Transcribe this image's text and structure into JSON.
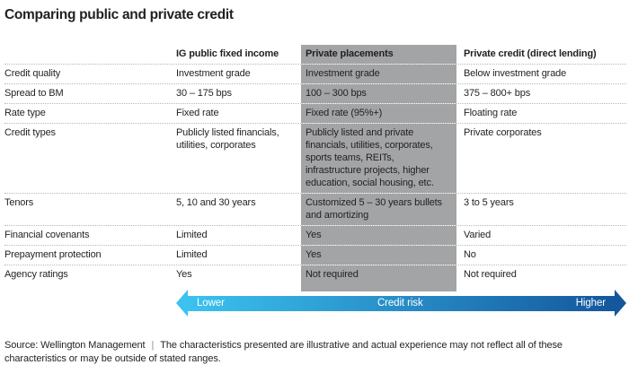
{
  "title": "Comparing public and private credit",
  "colors": {
    "highlight": "#a3a4a6",
    "arrow_start": "#3bc2ef",
    "arrow_end": "#14579c",
    "text": "#231f20",
    "dotted": "#b8b8b8"
  },
  "table": {
    "columns": [
      "",
      "IG public fixed income",
      "Private placements",
      "Private credit (direct lending)"
    ],
    "rows": [
      {
        "label": "Credit quality",
        "values": [
          "Investment grade",
          "Investment grade",
          "Below investment grade"
        ]
      },
      {
        "label": "Spread to BM",
        "values": [
          "30 – 175 bps",
          "100 – 300 bps",
          "375 – 800+ bps"
        ]
      },
      {
        "label": "Rate type",
        "values": [
          "Fixed rate",
          "Fixed rate (95%+)",
          "Floating rate"
        ]
      },
      {
        "label": "Credit types",
        "values": [
          "Publicly listed financials, utilities, corporates",
          "Publicly listed and private financials, utilities, corporates, sports teams, REITs, infrastructure projects, higher education, social housing, etc.",
          "Private corporates"
        ]
      },
      {
        "label": "Tenors",
        "values": [
          "5, 10 and 30 years",
          "Customized 5 – 30 years bullets and amortizing",
          "3 to 5 years"
        ]
      },
      {
        "label": "Financial covenants",
        "values": [
          "Limited",
          "Yes",
          "Varied"
        ]
      },
      {
        "label": "Prepayment protection",
        "values": [
          "Limited",
          "Yes",
          "No"
        ]
      },
      {
        "label": "Agency ratings",
        "values": [
          "Yes",
          "Not required",
          "Not required"
        ]
      }
    ]
  },
  "risk_arrow": {
    "left_label": "Lower",
    "center_label": "Credit risk",
    "right_label": "Higher"
  },
  "footer": {
    "source": "Source: Wellington Management",
    "separator": "|",
    "disclaimer": "The characteristics presented are illustrative and actual experience may not reflect all of these characteristics or may be outside of stated ranges."
  }
}
